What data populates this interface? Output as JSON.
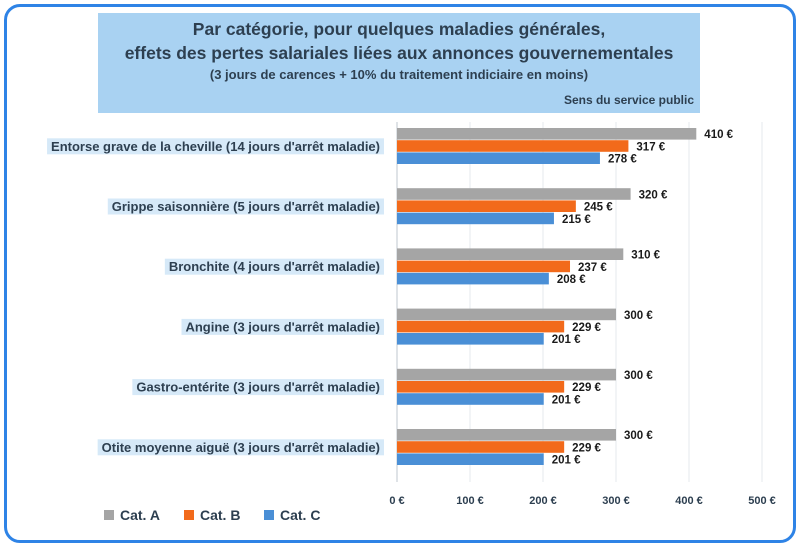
{
  "title": {
    "line1": "Par catégorie, pour quelques maladies générales,",
    "line2": "effets des pertes salariales liées aux annonces gouvernementales",
    "line3": "(3 jours de carences + 10% du traitement indiciaire en moins)",
    "source": "Sens du service public"
  },
  "chart_data": {
    "type": "bar",
    "orientation": "horizontal",
    "categories": [
      "Entorse grave de la cheville (14 jours d'arrêt maladie)",
      "Grippe saisonnière (5 jours d'arrêt maladie)",
      "Bronchite (4 jours d'arrêt maladie)",
      "Angine (3 jours d'arrêt maladie)",
      "Gastro-entérite (3 jours d'arrêt maladie)",
      "Otite moyenne aiguë (3 jours d'arrêt maladie)"
    ],
    "series": [
      {
        "name": "Cat. A",
        "color": "#a5a5a5",
        "values": [
          410,
          320,
          310,
          300,
          300,
          300
        ],
        "labels": [
          "410 €",
          "320 €",
          "310 €",
          "300 €",
          "300 €",
          "300 €"
        ]
      },
      {
        "name": "Cat. B",
        "color": "#f26a1b",
        "values": [
          317,
          245,
          237,
          229,
          229,
          229
        ],
        "labels": [
          "317 €",
          "245 €",
          "237 €",
          "229 €",
          "229 €",
          "229 €"
        ]
      },
      {
        "name": "Cat. C",
        "color": "#4a8fd6",
        "values": [
          278,
          215,
          208,
          201,
          201,
          201
        ],
        "labels": [
          "278 €",
          "215 €",
          "208 €",
          "201 €",
          "201 €",
          "201 €"
        ]
      }
    ],
    "xlim": [
      0,
      500
    ],
    "x_ticks": [
      0,
      100,
      200,
      300,
      400,
      500
    ],
    "x_tick_labels": [
      "0 €",
      "100 €",
      "200 €",
      "300 €",
      "400 €",
      "500 €"
    ],
    "grid": true,
    "legend_position": "bottom-left"
  }
}
